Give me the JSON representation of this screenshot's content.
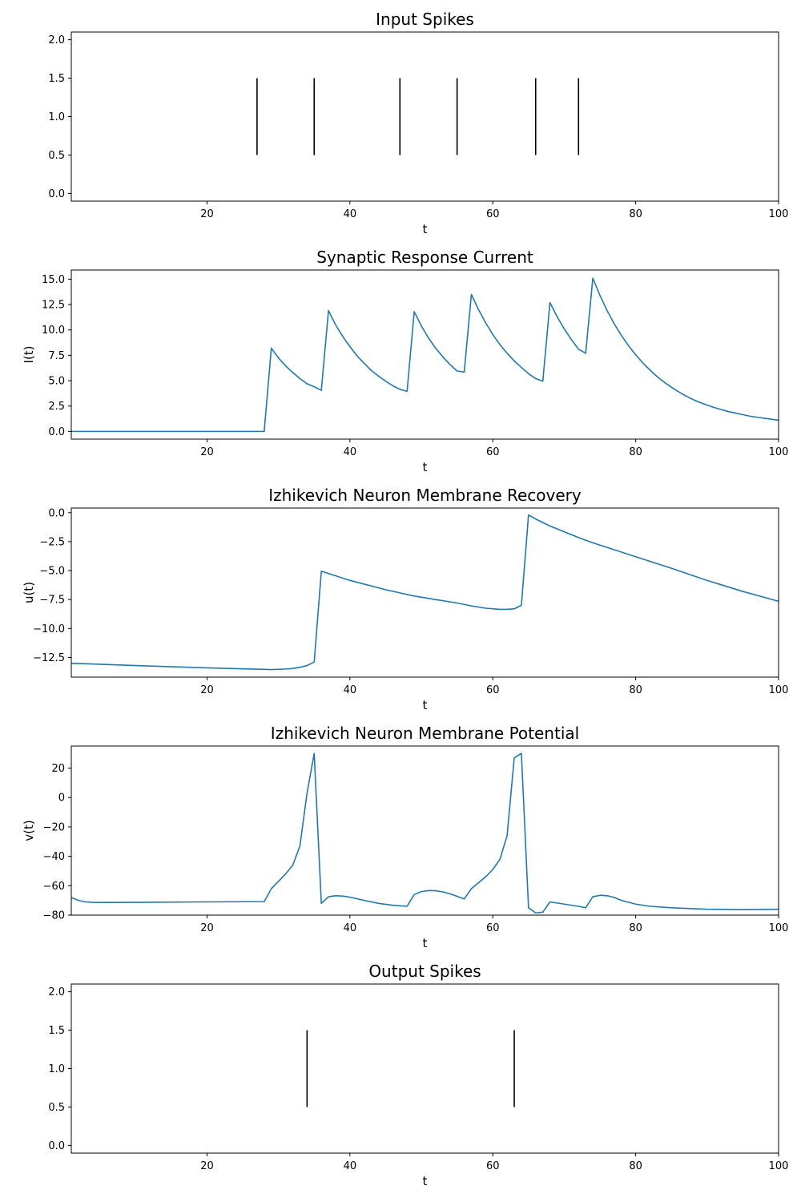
{
  "chart_data": [
    {
      "type": "event",
      "title": "Input Spikes",
      "xlabel": "t",
      "ylabel": "",
      "xlim": [
        1,
        100
      ],
      "ylim": [
        -0.1,
        2.1
      ],
      "xticks": [
        20,
        40,
        60,
        80,
        100
      ],
      "yticks": [
        0.0,
        0.5,
        1.0,
        1.5,
        2.0
      ],
      "ytick_labels": [
        "0.0",
        "0.5",
        "1.0",
        "1.5",
        "2.0"
      ],
      "line_color": "#000000",
      "events": [
        27,
        35,
        47,
        55,
        66,
        72
      ],
      "event_range": [
        0.5,
        1.5
      ]
    },
    {
      "type": "line",
      "title": "Synaptic Response Current",
      "xlabel": "t",
      "ylabel": "I(t)",
      "xlim": [
        1,
        100
      ],
      "ylim": [
        -0.76,
        15.9
      ],
      "xticks": [
        20,
        40,
        60,
        80,
        100
      ],
      "yticks": [
        0.0,
        2.5,
        5.0,
        7.5,
        10.0,
        12.5,
        15.0
      ],
      "ytick_labels": [
        "0.0",
        "2.5",
        "5.0",
        "7.5",
        "10.0",
        "12.5",
        "15.0"
      ],
      "line_color": "#1f77b4",
      "x": [
        1,
        28,
        29,
        30,
        31,
        32,
        33,
        34,
        35,
        36,
        37,
        38,
        39,
        40,
        41,
        42,
        43,
        44,
        45,
        46,
        47,
        48,
        49,
        50,
        51,
        52,
        53,
        54,
        55,
        56,
        57,
        58,
        59,
        60,
        61,
        62,
        63,
        64,
        65,
        66,
        67,
        68,
        69,
        70,
        71,
        72,
        73,
        74,
        75,
        76,
        77,
        78,
        79,
        80,
        81,
        82,
        83,
        84,
        85,
        86,
        87,
        88,
        89,
        90,
        91,
        92,
        93,
        94,
        95,
        96,
        97,
        98,
        99,
        100
      ],
      "y": [
        0.0,
        0.0,
        8.2,
        7.25,
        6.45,
        5.8,
        5.2,
        4.7,
        4.4,
        4.05,
        11.9,
        10.5,
        9.35,
        8.35,
        7.45,
        6.7,
        6.0,
        5.45,
        4.95,
        4.5,
        4.15,
        3.95,
        11.8,
        10.4,
        9.2,
        8.2,
        7.35,
        6.6,
        5.95,
        5.85,
        13.5,
        12.0,
        10.7,
        9.55,
        8.55,
        7.7,
        6.95,
        6.3,
        5.7,
        5.2,
        4.95,
        12.7,
        11.3,
        10.1,
        9.05,
        8.1,
        7.7,
        15.1,
        13.4,
        11.9,
        10.6,
        9.45,
        8.45,
        7.55,
        6.75,
        6.05,
        5.4,
        4.85,
        4.35,
        3.9,
        3.5,
        3.15,
        2.85,
        2.6,
        2.35,
        2.15,
        1.95,
        1.8,
        1.65,
        1.5,
        1.4,
        1.3,
        1.2,
        1.1
      ]
    },
    {
      "type": "line",
      "title": "Izhikevich Neuron Membrane Recovery",
      "xlabel": "t",
      "ylabel": "u(t)",
      "xlim": [
        1,
        100
      ],
      "ylim": [
        -14.2,
        0.4
      ],
      "xticks": [
        20,
        40,
        60,
        80,
        100
      ],
      "yticks": [
        0.0,
        -2.5,
        -5.0,
        -7.5,
        -10.0,
        -12.5
      ],
      "ytick_labels": [
        "0.0",
        "−2.5",
        "−5.0",
        "−7.5",
        "−10.0",
        "−12.5"
      ],
      "line_color": "#1f77b4",
      "x": [
        1,
        10,
        20,
        29,
        31,
        32,
        33,
        34,
        35,
        36,
        40,
        45,
        49,
        52,
        55,
        57,
        59,
        61,
        62,
        63,
        64,
        65,
        66,
        68,
        70,
        72,
        74,
        76,
        80,
        85,
        90,
        95,
        100
      ],
      "y": [
        -13.0,
        -13.2,
        -13.4,
        -13.55,
        -13.5,
        -13.45,
        -13.35,
        -13.2,
        -12.9,
        -5.05,
        -5.85,
        -6.65,
        -7.2,
        -7.5,
        -7.8,
        -8.05,
        -8.25,
        -8.35,
        -8.35,
        -8.3,
        -8.0,
        -0.2,
        -0.55,
        -1.15,
        -1.65,
        -2.15,
        -2.6,
        -3.0,
        -3.8,
        -4.8,
        -5.85,
        -6.8,
        -7.65
      ]
    },
    {
      "type": "line",
      "title": "Izhikevich Neuron Membrane Potential",
      "xlabel": "t",
      "ylabel": "v(t)",
      "xlim": [
        1,
        100
      ],
      "ylim": [
        -80,
        35
      ],
      "xticks": [
        20,
        40,
        60,
        80,
        100
      ],
      "yticks": [
        20,
        0,
        -20,
        -40,
        -60,
        -80
      ],
      "ytick_labels": [
        "20",
        "0",
        "−20",
        "−40",
        "−60",
        "−80"
      ],
      "line_color": "#1f77b4",
      "x": [
        1,
        2,
        3,
        4,
        5,
        10,
        20,
        28,
        29,
        30,
        31,
        32,
        33,
        34,
        35,
        36,
        37,
        38,
        39,
        40,
        42,
        44,
        46,
        48,
        49,
        50,
        51,
        52,
        53,
        54,
        55,
        56,
        57,
        58,
        59,
        60,
        61,
        62,
        63,
        64,
        65,
        66,
        67,
        68,
        70,
        72,
        73,
        74,
        75,
        76,
        77,
        78,
        80,
        82,
        85,
        90,
        95,
        100
      ],
      "y": [
        -68,
        -70,
        -71,
        -71.3,
        -71.4,
        -71.3,
        -71,
        -70.8,
        -62,
        -57,
        -52,
        -46,
        -33,
        3,
        30,
        -72,
        -67.5,
        -66.8,
        -67,
        -67.8,
        -70,
        -72,
        -73.3,
        -74,
        -66,
        -64,
        -63.3,
        -63.4,
        -64.2,
        -65.5,
        -67.2,
        -69,
        -62,
        -58,
        -54,
        -49,
        -42,
        -26,
        27,
        30,
        -75,
        -78.5,
        -78,
        -71,
        -72.5,
        -74,
        -75,
        -67.5,
        -66.5,
        -66.8,
        -68,
        -70,
        -72.5,
        -74,
        -75,
        -76,
        -76.3,
        -76
      ]
    },
    {
      "type": "event",
      "title": "Output Spikes",
      "xlabel": "t",
      "ylabel": "",
      "xlim": [
        1,
        100
      ],
      "ylim": [
        -0.1,
        2.1
      ],
      "xticks": [
        20,
        40,
        60,
        80,
        100
      ],
      "yticks": [
        0.0,
        0.5,
        1.0,
        1.5,
        2.0
      ],
      "ytick_labels": [
        "0.0",
        "0.5",
        "1.0",
        "1.5",
        "2.0"
      ],
      "line_color": "#000000",
      "events": [
        34,
        63
      ],
      "event_range": [
        0.5,
        1.5
      ]
    }
  ]
}
